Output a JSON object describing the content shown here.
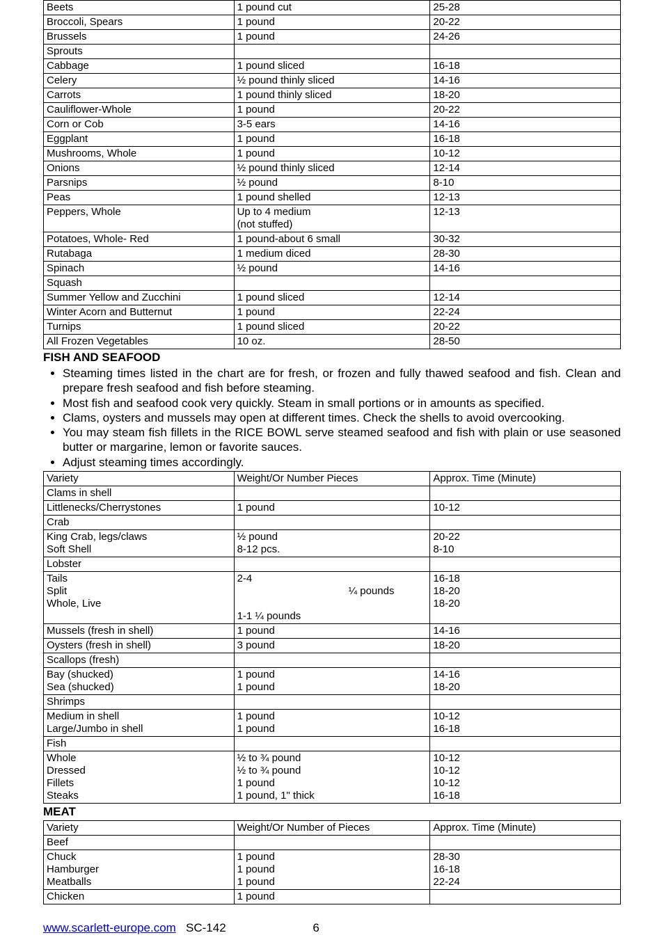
{
  "veg_table": {
    "rows": [
      {
        "name": "Beets",
        "prep": "1 pound cut",
        "time": "25-28"
      },
      {
        "name": "Broccoli, Spears",
        "prep": "1 pound",
        "time": "20-22"
      },
      {
        "name": "Brussels",
        "prep": "1 pound",
        "time": "24-26"
      },
      {
        "name": "Sprouts",
        "prep": "",
        "time": ""
      },
      {
        "name": "Cabbage",
        "prep": "1 pound sliced",
        "time": "16-18"
      },
      {
        "name": "Celery",
        "prep": "½ pound thinly sliced",
        "time": "14-16"
      },
      {
        "name": "Carrots",
        "prep": "1 pound thinly sliced",
        "time": "18-20"
      },
      {
        "name": "Cauliflower-Whole",
        "prep": "1 pound",
        "time": "20-22"
      },
      {
        "name": "Corn or Cob",
        "prep": "3-5 ears",
        "time": "14-16"
      },
      {
        "name": "Eggplant",
        "prep": "1 pound",
        "time": "16-18"
      },
      {
        "name": "Mushrooms, Whole",
        "prep": "1 pound",
        "time": "10-12"
      },
      {
        "name": "Onions",
        "prep": "½ pound thinly sliced",
        "time": "12-14"
      },
      {
        "name": "Parsnips",
        "prep": "½ pound",
        "time": "8-10"
      },
      {
        "name": "Peas",
        "prep": "1 pound shelled",
        "time": "12-13"
      },
      {
        "name": "Peppers, Whole",
        "prep": "Up to 4 medium\n(not stuffed)",
        "time": "12-13"
      },
      {
        "name": "Potatoes, Whole- Red",
        "prep": "1 pound-about 6 small",
        "time": "30-32"
      },
      {
        "name": "Rutabaga",
        "prep": "1 medium diced",
        "time": "28-30"
      },
      {
        "name": "Spinach",
        "prep": "½ pound",
        "time": "14-16"
      },
      {
        "name": "Squash",
        "prep": "",
        "time": ""
      },
      {
        "name": "Summer Yellow and Zucchini",
        "prep": "1 pound sliced",
        "time": "12-14"
      },
      {
        "name": "Winter Acorn and Butternut",
        "prep": "1 pound",
        "time": "22-24"
      },
      {
        "name": "Turnips",
        "prep": "1 pound sliced",
        "time": "20-22"
      },
      {
        "name": "All Frozen Vegetables",
        "prep": "10 oz.",
        "time": "28-50"
      }
    ]
  },
  "fish_heading": "FISH AND SEAFOOD",
  "fish_bullets": [
    "Steaming times listed in the chart are for fresh, or frozen and fully thawed seafood and fish. Clean and prepare fresh seafood and fish before steaming.",
    "Most fish and seafood cook very quickly. Steam in small portions or in amounts as specified.",
    "Clams, oysters and mussels may open at different times. Check the shells to avoid overcooking.",
    "You may steam fish fillets in the RICE BOWL serve steamed seafood and fish with plain or use seasoned butter or margarine, lemon or favorite sauces.",
    "Adjust steaming times accordingly."
  ],
  "fish_table": {
    "header": {
      "a": "Variety",
      "b": "Weight/Or Number Pieces",
      "c": "Approx. Time (Minute)"
    },
    "rows": [
      {
        "a": "Clams in shell",
        "b": "",
        "c": ""
      },
      {
        "a": "Littlenecks/Cherrystones",
        "b": "1 pound",
        "c": "10-12"
      },
      {
        "a": "Crab",
        "b": "",
        "c": ""
      },
      {
        "a": "King Crab, legs/claws",
        "b": "½ pound",
        "c": "20-22"
      },
      {
        "a": "Soft Shell",
        "b": "8-12 pcs.",
        "c": "8-10"
      },
      {
        "a": "Lobster",
        "b": "",
        "c": ""
      },
      {
        "a": "Tails",
        "b": "2-4",
        "c": "16-18"
      },
      {
        "a": "Split",
        "b": "¼ pounds",
        "c": "18-20",
        "center": true
      },
      {
        "a": "Whole, Live",
        "b": "1-1 ¼ pounds",
        "c": "18-20"
      },
      {
        "a": "Mussels (fresh in shell)",
        "b": "1 pound",
        "c": "14-16"
      },
      {
        "a": "Oysters (fresh in shell)",
        "b": "3 pound",
        "c": "18-20"
      },
      {
        "a": "Scallops (fresh)",
        "b": "",
        "c": ""
      },
      {
        "a": "Bay (shucked)",
        "b": "1 pound",
        "c": "14-16"
      },
      {
        "a": "Sea (shucked)",
        "b": "1 pound",
        "c": "18-20"
      },
      {
        "a": "Shrimps",
        "b": "",
        "c": ""
      },
      {
        "a": "Medium in shell",
        "b": "1 pound",
        "c": "10-12"
      },
      {
        "a": "Large/Jumbo in shell",
        "b": "1 pound",
        "c": "16-18"
      },
      {
        "a": "Fish",
        "b": "",
        "c": ""
      },
      {
        "a": "Whole",
        "b": "½ to ¾ pound",
        "c": "10-12"
      },
      {
        "a": "Dressed",
        "b": "½ to ¾ pound",
        "c": "10-12"
      },
      {
        "a": "Fillets",
        "b": "1 pound",
        "c": "10-12"
      },
      {
        "a": "Steaks",
        "b": "1 pound, 1\" thick",
        "c": "16-18"
      }
    ]
  },
  "meat_heading": "MEAT",
  "meat_table": {
    "header": {
      "a": "Variety",
      "b": "Weight/Or Number of Pieces",
      "c": "Approx. Time (Minute)"
    },
    "rows": [
      {
        "a": "Beef",
        "b": "",
        "c": ""
      },
      {
        "a": "Chuck",
        "b": "1 pound",
        "c": "28-30"
      },
      {
        "a": "Hamburger",
        "b": "1 pound",
        "c": "16-18"
      },
      {
        "a": "Meatballs",
        "b": "1 pound",
        "c": "22-24"
      },
      {
        "a": "Chicken",
        "b": "1 pound",
        "c": ""
      }
    ]
  },
  "footer": {
    "link_text": "www.scarlett-europe.com",
    "model": "SC-142",
    "page": "6"
  }
}
